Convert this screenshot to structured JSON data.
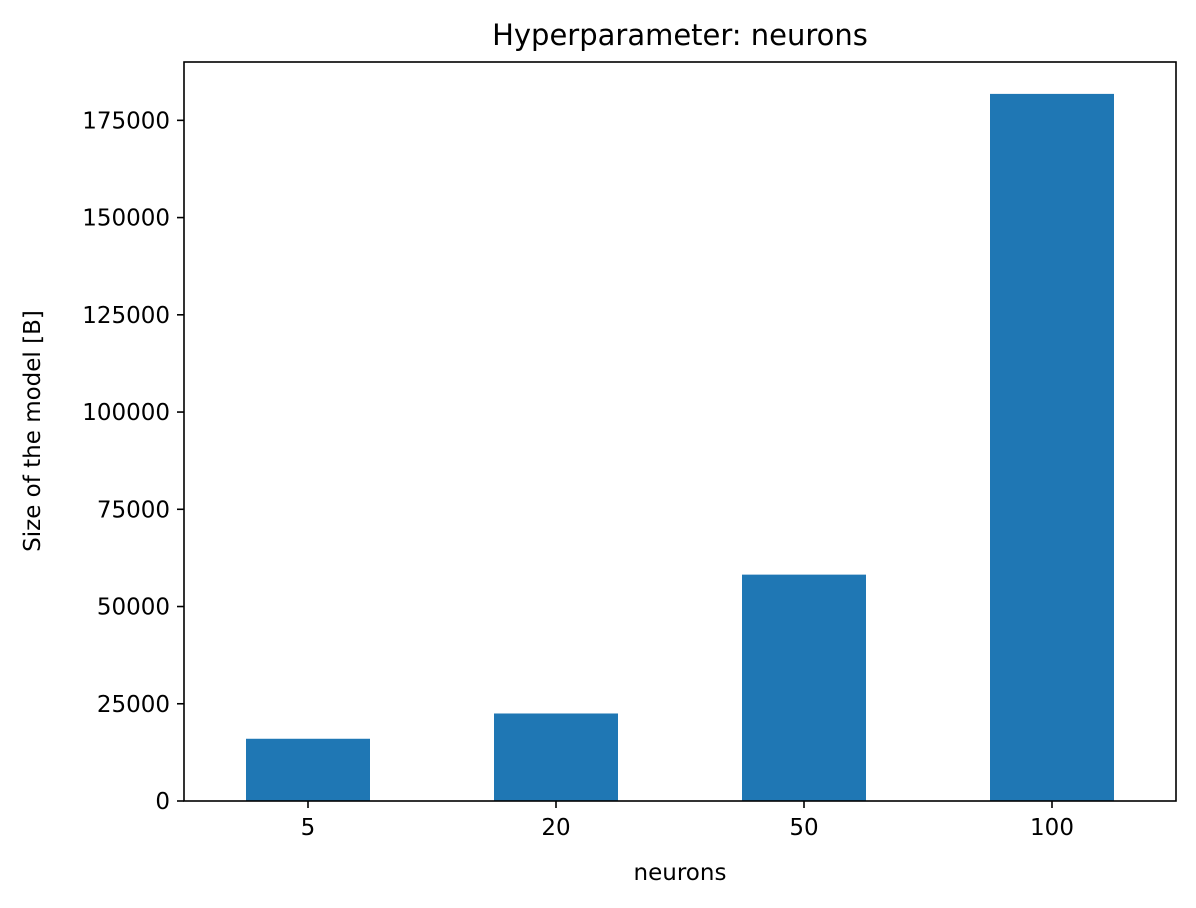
{
  "chart_data": {
    "type": "bar",
    "title": "Hyperparameter: neurons",
    "xlabel": "neurons",
    "ylabel": "Size of the model [B]",
    "categories": [
      "5",
      "20",
      "50",
      "100"
    ],
    "values": [
      16000,
      22500,
      58200,
      181800
    ],
    "ylim": [
      0,
      190000
    ],
    "yticks": [
      0,
      25000,
      50000,
      75000,
      100000,
      125000,
      150000,
      175000
    ],
    "ytick_labels": [
      "0",
      "25000",
      "50000",
      "75000",
      "100000",
      "125000",
      "150000",
      "175000"
    ],
    "bar_color": "#1f77b4",
    "grid": false,
    "legend": false
  }
}
